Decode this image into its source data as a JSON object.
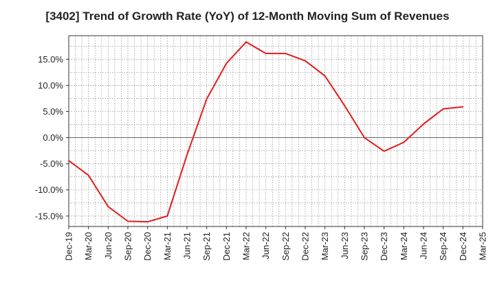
{
  "chart_data": {
    "type": "line",
    "title": "[3402]  Trend of Growth Rate (YoY) of 12-Month Moving Sum of Revenues",
    "xlabel": "",
    "ylabel": "",
    "ylim": [
      -17.0,
      19.5
    ],
    "yticks": [
      15.0,
      10.0,
      5.0,
      0.0,
      -5.0,
      -10.0,
      -15.0
    ],
    "ytick_labels": [
      "15.0%",
      "10.0%",
      "5.0%",
      "0.0%",
      "-5.0%",
      "-10.0%",
      "-15.0%"
    ],
    "categories": [
      "Dec-19",
      "Mar-20",
      "Jun-20",
      "Sep-20",
      "Dec-20",
      "Mar-21",
      "Jun-21",
      "Sep-21",
      "Dec-21",
      "Mar-22",
      "Jun-22",
      "Sep-22",
      "Dec-22",
      "Mar-23",
      "Jun-23",
      "Sep-23",
      "Dec-23",
      "Mar-24",
      "Jun-24",
      "Sep-24",
      "Dec-24",
      "Mar-25"
    ],
    "series": [
      {
        "color": "#e31a1c",
        "values": [
          -4.4,
          -7.2,
          -13.2,
          -16.0,
          -16.1,
          -15.0,
          -3.3,
          7.4,
          14.2,
          18.3,
          16.1,
          16.1,
          14.7,
          11.8,
          6.1,
          0.0,
          -2.6,
          -0.9,
          2.6,
          5.5,
          5.9,
          null
        ]
      }
    ],
    "grid": true,
    "colors": {
      "line": "#e31a1c",
      "grid": "#888888",
      "zero_line": "#666666",
      "axis": "#333333"
    }
  }
}
